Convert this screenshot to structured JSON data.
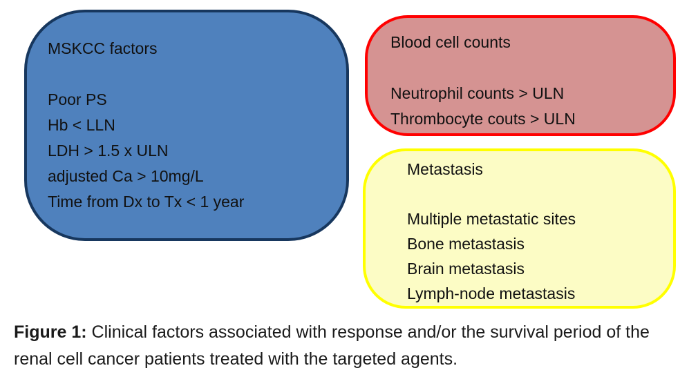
{
  "boxes": [
    {
      "title": "MSKCC factors",
      "items": [
        "Poor PS",
        "Hb < LLN",
        "LDH > 1.5 x ULN",
        "adjusted Ca > 10mg/L",
        "Time from Dx to Tx < 1 year"
      ],
      "fill": "#4F81BD",
      "border": "#17375E"
    },
    {
      "title": "Blood cell counts",
      "items": [
        "Neutrophil counts > ULN",
        "Thrombocyte couts > ULN"
      ],
      "fill": "#D59392",
      "border": "#FF0000"
    },
    {
      "title": "Metastasis",
      "items": [
        "Multiple metastatic sites",
        "Bone metastasis",
        "Brain metastasis",
        "Lymph-node metastasis"
      ],
      "fill": "#FCFCC5",
      "border": "#FFFF00"
    }
  ],
  "caption": {
    "label": "Figure 1:",
    "text": "Clinical factors associated with response and/or the survival period of the renal cell cancer patients treated with the targeted agents."
  },
  "colors": {
    "background": "#FFFFFF",
    "text": "#111111"
  }
}
